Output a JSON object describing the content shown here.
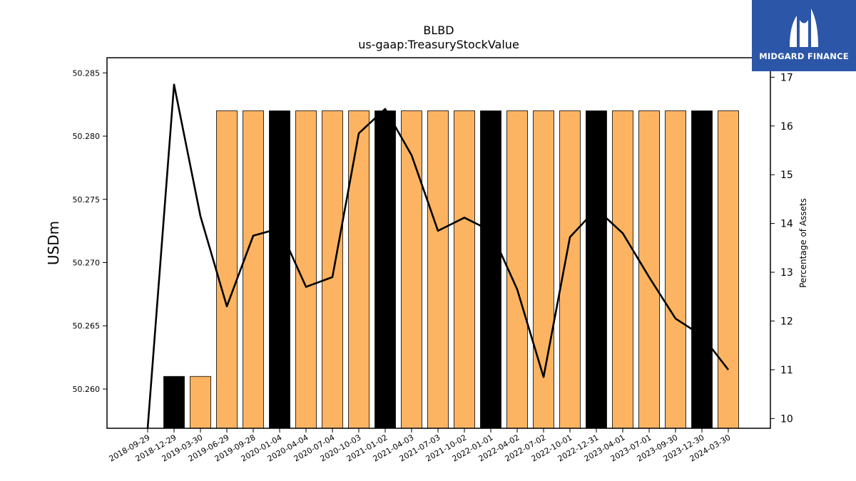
{
  "logo": {
    "text": "MIDGARD FINANCE"
  },
  "colors": {
    "bar_primary": "#fdb462",
    "bar_highlight": "#000000",
    "line": "#000000"
  },
  "chart_data": {
    "type": "bar",
    "title": "BLBD",
    "subtitle": "us-gaap:TreasuryStockValue",
    "ylabel": "USDm",
    "y2label": "Percentage of Assets",
    "ylim": [
      50.2569,
      50.2862
    ],
    "y2lim": [
      9.8,
      17.4
    ],
    "y_ticks": [
      "50.260",
      "50.265",
      "50.270",
      "50.275",
      "50.280",
      "50.285"
    ],
    "y2_ticks": [
      "10",
      "11",
      "12",
      "13",
      "14",
      "15",
      "16",
      "17"
    ],
    "categories": [
      "2018-09-29",
      "2018-12-29",
      "2019-03-30",
      "2019-06-29",
      "2019-09-28",
      "2020-01-04",
      "2020-04-04",
      "2020-07-04",
      "2020-10-03",
      "2021-01-02",
      "2021-04-03",
      "2021-07-03",
      "2021-10-02",
      "2022-01-01",
      "2022-04-02",
      "2022-07-02",
      "2022-10-01",
      "2022-12-31",
      "2023-04-01",
      "2023-07-01",
      "2023-09-30",
      "2023-12-30",
      "2024-03-30"
    ],
    "series": [
      {
        "type": "bar",
        "values": [
          null,
          50.261,
          50.261,
          50.282,
          50.282,
          50.282,
          50.282,
          50.282,
          50.282,
          50.282,
          50.282,
          50.282,
          50.282,
          50.282,
          50.282,
          50.282,
          50.282,
          50.282,
          50.282,
          50.282,
          50.282,
          50.282,
          50.282
        ],
        "highlight": [
          false,
          true,
          false,
          false,
          false,
          true,
          false,
          false,
          false,
          true,
          false,
          false,
          false,
          true,
          false,
          false,
          false,
          true,
          false,
          false,
          false,
          true,
          false
        ]
      },
      {
        "type": "line",
        "axis": "right",
        "values": [
          9.8,
          16.85,
          14.15,
          12.3,
          13.75,
          13.9,
          12.7,
          12.9,
          15.85,
          16.35,
          15.4,
          13.85,
          14.12,
          13.85,
          12.65,
          10.85,
          13.72,
          14.3,
          13.8,
          12.9,
          12.05,
          11.7,
          11.0
        ]
      }
    ],
    "grid": false
  }
}
